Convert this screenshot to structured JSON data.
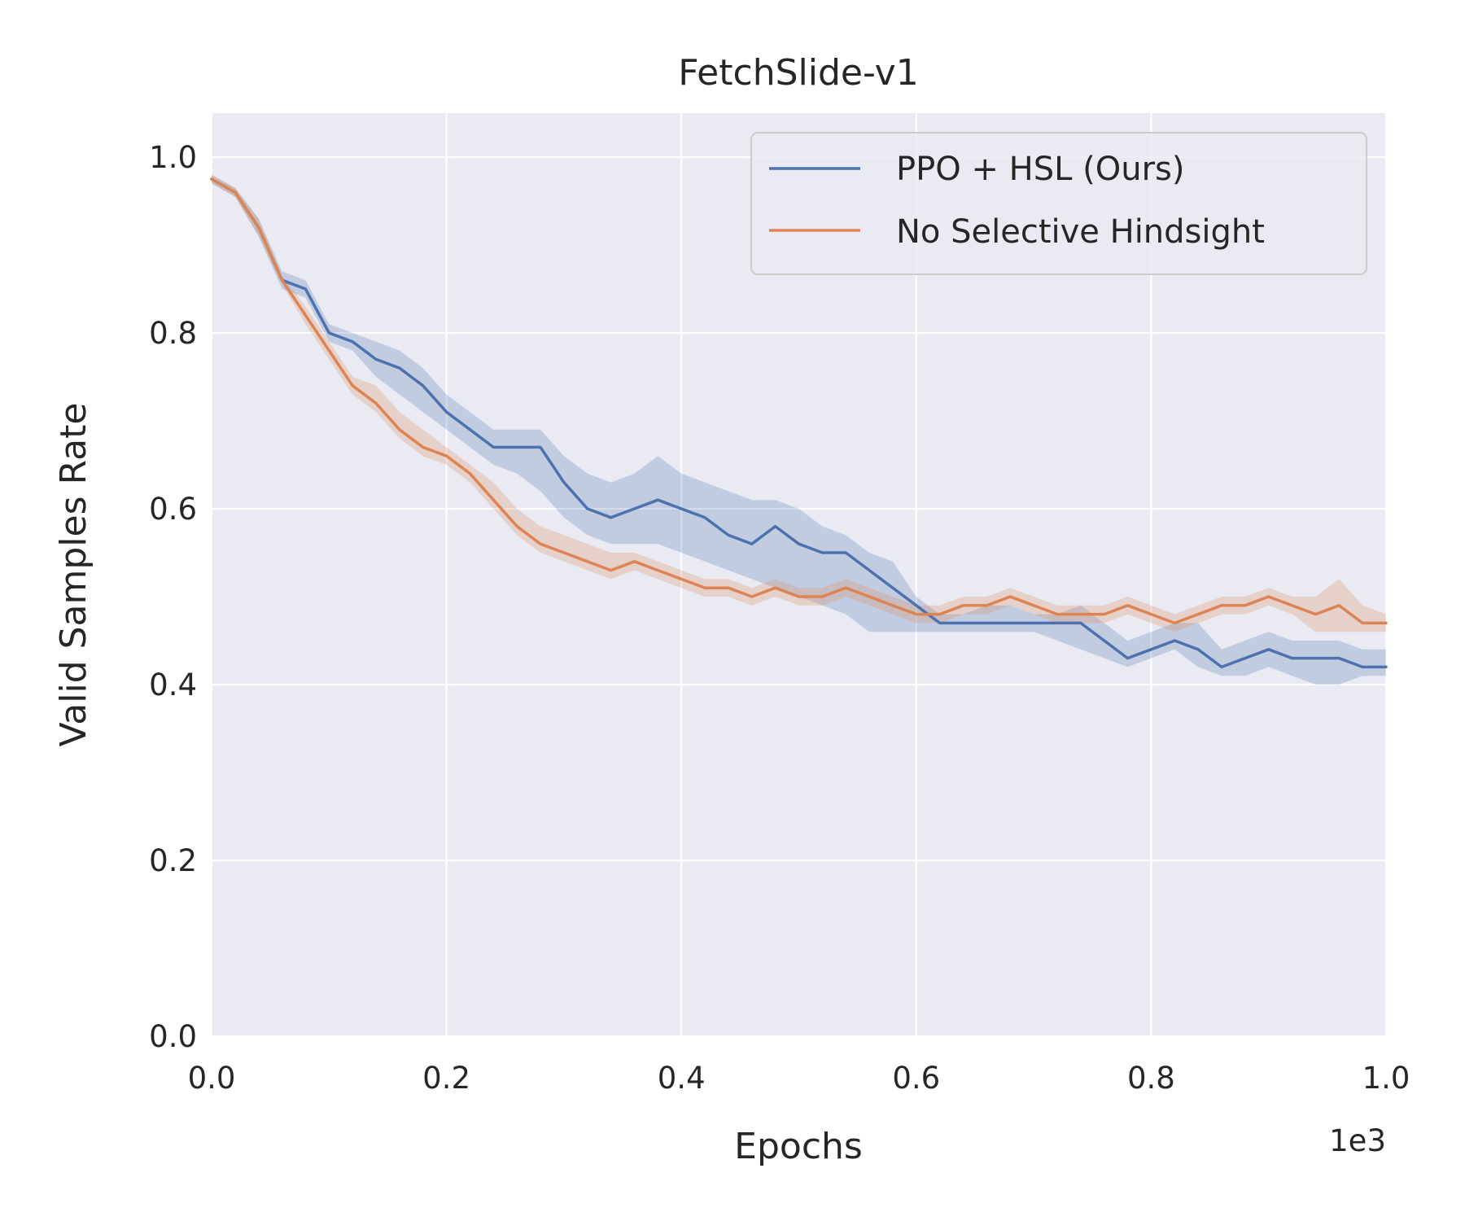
{
  "chart_data": {
    "type": "line",
    "title": "FetchSlide-v1",
    "xlabel": "Epochs",
    "ylabel": "Valid Samples Rate",
    "x_offset_label": "1e3",
    "xlim": [
      0.0,
      1.0
    ],
    "ylim": [
      0.0,
      1.05
    ],
    "xticks": [
      0.0,
      0.2,
      0.4,
      0.6,
      0.8,
      1.0
    ],
    "xtick_labels": [
      "0.0",
      "0.2",
      "0.4",
      "0.6",
      "0.8",
      "1.0"
    ],
    "yticks": [
      0.0,
      0.2,
      0.4,
      0.6,
      0.8,
      1.0
    ],
    "ytick_labels": [
      "0.0",
      "0.2",
      "0.4",
      "0.6",
      "0.8",
      "1.0"
    ],
    "grid": true,
    "legend_position": "top-right",
    "background_color": "#eaeaf2",
    "series": [
      {
        "name": "PPO + HSL (Ours)",
        "color": "#4c72b0",
        "x": [
          0.0,
          0.02,
          0.04,
          0.06,
          0.08,
          0.1,
          0.12,
          0.14,
          0.16,
          0.18,
          0.2,
          0.22,
          0.24,
          0.26,
          0.28,
          0.3,
          0.32,
          0.34,
          0.36,
          0.38,
          0.4,
          0.42,
          0.44,
          0.46,
          0.48,
          0.5,
          0.52,
          0.54,
          0.56,
          0.58,
          0.6,
          0.62,
          0.64,
          0.66,
          0.68,
          0.7,
          0.72,
          0.74,
          0.76,
          0.78,
          0.8,
          0.82,
          0.84,
          0.86,
          0.88,
          0.9,
          0.92,
          0.94,
          0.96,
          0.98,
          1.0
        ],
        "values": [
          0.975,
          0.96,
          0.92,
          0.86,
          0.85,
          0.8,
          0.79,
          0.77,
          0.76,
          0.74,
          0.71,
          0.69,
          0.67,
          0.67,
          0.67,
          0.63,
          0.6,
          0.59,
          0.6,
          0.61,
          0.6,
          0.59,
          0.57,
          0.56,
          0.58,
          0.56,
          0.55,
          0.55,
          0.53,
          0.51,
          0.49,
          0.47,
          0.47,
          0.47,
          0.47,
          0.47,
          0.47,
          0.47,
          0.45,
          0.43,
          0.44,
          0.45,
          0.44,
          0.42,
          0.43,
          0.44,
          0.43,
          0.43,
          0.43,
          0.42,
          0.42
        ],
        "band_lower": [
          0.97,
          0.955,
          0.91,
          0.85,
          0.84,
          0.79,
          0.78,
          0.75,
          0.73,
          0.71,
          0.69,
          0.67,
          0.65,
          0.64,
          0.62,
          0.59,
          0.57,
          0.56,
          0.56,
          0.56,
          0.55,
          0.54,
          0.53,
          0.52,
          0.51,
          0.5,
          0.49,
          0.48,
          0.46,
          0.46,
          0.46,
          0.46,
          0.46,
          0.46,
          0.46,
          0.46,
          0.45,
          0.44,
          0.43,
          0.42,
          0.43,
          0.44,
          0.42,
          0.41,
          0.41,
          0.42,
          0.41,
          0.4,
          0.4,
          0.41,
          0.41
        ],
        "band_upper": [
          0.98,
          0.965,
          0.93,
          0.87,
          0.86,
          0.81,
          0.8,
          0.79,
          0.78,
          0.76,
          0.73,
          0.71,
          0.69,
          0.69,
          0.69,
          0.66,
          0.64,
          0.63,
          0.64,
          0.66,
          0.64,
          0.63,
          0.62,
          0.61,
          0.61,
          0.6,
          0.58,
          0.57,
          0.55,
          0.54,
          0.5,
          0.48,
          0.48,
          0.49,
          0.49,
          0.48,
          0.48,
          0.49,
          0.47,
          0.45,
          0.46,
          0.47,
          0.47,
          0.44,
          0.45,
          0.46,
          0.45,
          0.45,
          0.45,
          0.44,
          0.44
        ]
      },
      {
        "name": "No Selective Hindsight",
        "color": "#dd8452",
        "x": [
          0.0,
          0.02,
          0.04,
          0.06,
          0.08,
          0.1,
          0.12,
          0.14,
          0.16,
          0.18,
          0.2,
          0.22,
          0.24,
          0.26,
          0.28,
          0.3,
          0.32,
          0.34,
          0.36,
          0.38,
          0.4,
          0.42,
          0.44,
          0.46,
          0.48,
          0.5,
          0.52,
          0.54,
          0.56,
          0.58,
          0.6,
          0.62,
          0.64,
          0.66,
          0.68,
          0.7,
          0.72,
          0.74,
          0.76,
          0.78,
          0.8,
          0.82,
          0.84,
          0.86,
          0.88,
          0.9,
          0.92,
          0.94,
          0.96,
          0.98,
          1.0
        ],
        "values": [
          0.975,
          0.96,
          0.92,
          0.86,
          0.82,
          0.78,
          0.74,
          0.72,
          0.69,
          0.67,
          0.66,
          0.64,
          0.61,
          0.58,
          0.56,
          0.55,
          0.54,
          0.53,
          0.54,
          0.53,
          0.52,
          0.51,
          0.51,
          0.5,
          0.51,
          0.5,
          0.5,
          0.51,
          0.5,
          0.49,
          0.48,
          0.48,
          0.49,
          0.49,
          0.5,
          0.49,
          0.48,
          0.48,
          0.48,
          0.49,
          0.48,
          0.47,
          0.48,
          0.49,
          0.49,
          0.5,
          0.49,
          0.48,
          0.49,
          0.47,
          0.47
        ],
        "band_lower": [
          0.97,
          0.955,
          0.91,
          0.855,
          0.81,
          0.77,
          0.73,
          0.71,
          0.68,
          0.66,
          0.65,
          0.63,
          0.6,
          0.57,
          0.55,
          0.54,
          0.53,
          0.52,
          0.53,
          0.52,
          0.51,
          0.5,
          0.5,
          0.49,
          0.5,
          0.49,
          0.49,
          0.5,
          0.49,
          0.48,
          0.47,
          0.47,
          0.48,
          0.48,
          0.49,
          0.48,
          0.47,
          0.47,
          0.47,
          0.48,
          0.47,
          0.46,
          0.47,
          0.48,
          0.48,
          0.49,
          0.48,
          0.46,
          0.46,
          0.46,
          0.46
        ],
        "band_upper": [
          0.98,
          0.965,
          0.93,
          0.865,
          0.83,
          0.79,
          0.75,
          0.74,
          0.71,
          0.69,
          0.67,
          0.65,
          0.63,
          0.6,
          0.58,
          0.57,
          0.56,
          0.55,
          0.55,
          0.54,
          0.53,
          0.52,
          0.52,
          0.51,
          0.52,
          0.51,
          0.51,
          0.52,
          0.51,
          0.5,
          0.49,
          0.49,
          0.5,
          0.5,
          0.51,
          0.5,
          0.49,
          0.49,
          0.49,
          0.5,
          0.49,
          0.48,
          0.49,
          0.5,
          0.5,
          0.51,
          0.5,
          0.5,
          0.52,
          0.49,
          0.48
        ]
      }
    ]
  }
}
